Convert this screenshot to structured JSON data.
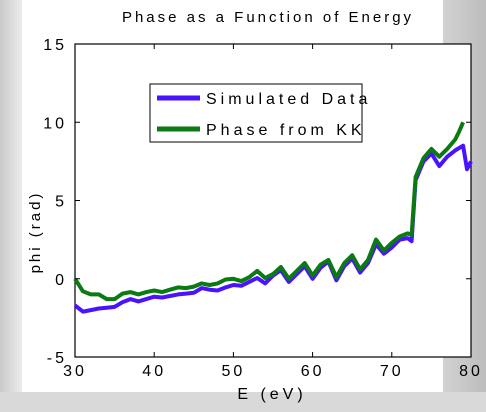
{
  "colors": {
    "simulated": "#4a13ff",
    "kk": "#0b7a12",
    "axis": "#000000"
  },
  "chart_data": {
    "type": "line",
    "title": "Phase as a Function of Energy",
    "xlabel": "E (eV)",
    "ylabel": "phi (rad)",
    "xlim": [
      30,
      80
    ],
    "ylim": [
      -5,
      15
    ],
    "xticks": [
      "30",
      "40",
      "50",
      "60",
      "70",
      "80"
    ],
    "yticks": [
      "-5",
      "0",
      "5",
      "10",
      "15"
    ],
    "legend_position": "top-left",
    "series": [
      {
        "name": "Simulated Data",
        "color": "#4a13ff",
        "x": [
          30,
          31,
          32,
          33,
          34,
          35,
          36,
          37,
          38,
          39,
          40,
          41,
          42,
          43,
          44,
          45,
          46,
          47,
          48,
          49,
          50,
          51,
          52,
          53,
          54,
          55,
          56,
          57,
          58,
          59,
          60,
          61,
          62,
          63,
          64,
          65,
          66,
          67,
          68,
          69,
          70,
          71,
          72,
          72.5,
          73,
          74,
          75,
          76,
          77,
          78,
          79,
          79.5,
          80
        ],
        "y": [
          -1.7,
          -2.1,
          -2.0,
          -1.9,
          -1.85,
          -1.8,
          -1.5,
          -1.3,
          -1.45,
          -1.3,
          -1.15,
          -1.2,
          -1.1,
          -1.0,
          -0.95,
          -0.9,
          -0.6,
          -0.7,
          -0.75,
          -0.55,
          -0.4,
          -0.45,
          -0.2,
          0.05,
          -0.3,
          0.2,
          0.55,
          -0.2,
          0.3,
          0.8,
          0.0,
          0.7,
          1.1,
          -0.1,
          0.8,
          1.3,
          0.4,
          1.0,
          2.2,
          1.6,
          2.0,
          2.5,
          2.6,
          2.4,
          6.3,
          7.5,
          8.0,
          7.2,
          7.8,
          8.2,
          8.5,
          7.0,
          7.5
        ]
      },
      {
        "name": "Phase from KK",
        "color": "#0b7a12",
        "x": [
          30,
          31,
          32,
          33,
          34,
          35,
          36,
          37,
          38,
          39,
          40,
          41,
          42,
          43,
          44,
          45,
          46,
          47,
          48,
          49,
          50,
          51,
          52,
          53,
          54,
          55,
          56,
          57,
          58,
          59,
          60,
          61,
          62,
          63,
          64,
          65,
          66,
          67,
          68,
          69,
          70,
          71,
          72,
          72.5,
          73,
          74,
          75,
          76,
          77,
          78,
          78.5,
          79
        ],
        "y": [
          0.0,
          -0.8,
          -1.0,
          -1.0,
          -1.3,
          -1.3,
          -0.95,
          -0.85,
          -1.0,
          -0.85,
          -0.75,
          -0.85,
          -0.7,
          -0.55,
          -0.6,
          -0.5,
          -0.3,
          -0.4,
          -0.3,
          -0.05,
          0.0,
          -0.15,
          0.1,
          0.5,
          0.05,
          0.3,
          0.75,
          0.0,
          0.5,
          1.0,
          0.2,
          0.9,
          1.2,
          0.1,
          1.0,
          1.5,
          0.6,
          1.2,
          2.5,
          1.8,
          2.3,
          2.7,
          2.9,
          2.8,
          6.5,
          7.7,
          8.3,
          7.8,
          8.3,
          8.9,
          9.4,
          10.0
        ]
      }
    ]
  }
}
